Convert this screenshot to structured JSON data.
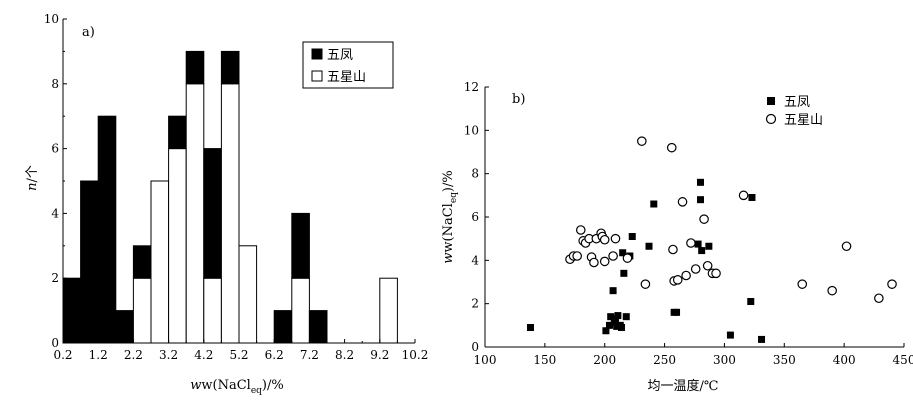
{
  "chart_data": [
    {
      "type": "bar",
      "panel": "a)",
      "ylabel_italic": "n",
      "ylabel_rest": "/个",
      "xlabel_main": "w(NaCl",
      "xlabel_sub": "eq",
      "xlabel_tail": ")/%",
      "ylim": [
        0,
        10
      ],
      "yticks": [
        "0",
        "2",
        "4",
        "6",
        "8",
        "10"
      ],
      "xticks": [
        "0.2",
        "1.2",
        "2.2",
        "3.2",
        "4.2",
        "5.2",
        "6.2",
        "7.2",
        "8.2",
        "9.2",
        "10.2"
      ],
      "bin_width": 0.5,
      "stacked": true,
      "legend_position": "top-right",
      "bins": [
        0.2,
        0.7,
        1.2,
        1.7,
        2.2,
        2.7,
        3.2,
        3.7,
        4.2,
        4.7,
        5.2,
        5.7,
        6.2,
        6.7,
        7.2,
        7.7,
        8.2,
        8.7,
        9.2,
        9.7
      ],
      "series": [
        {
          "name": "五星山",
          "fill": "#ffffff",
          "values": [
            0,
            0,
            0,
            0,
            2,
            5,
            6,
            8,
            2,
            8,
            3,
            0,
            0,
            2,
            0,
            0,
            0,
            0,
            2,
            0
          ]
        },
        {
          "name": "五凤",
          "fill": "#000000",
          "values": [
            2,
            5,
            7,
            1,
            1,
            0,
            1,
            1,
            4,
            1,
            0,
            0,
            1,
            2,
            1,
            0,
            0,
            0,
            0,
            0
          ]
        }
      ]
    },
    {
      "type": "scatter",
      "panel": "b)",
      "xlabel": "均一温度/℃",
      "ylabel_main": "w(NaCl",
      "ylabel_sub": "eq",
      "ylabel_tail": ")/%",
      "xlim": [
        100,
        450
      ],
      "ylim": [
        0,
        12
      ],
      "xticks": [
        "100",
        "150",
        "200",
        "250",
        "300",
        "350",
        "400",
        "450"
      ],
      "yticks": [
        "0",
        "2",
        "4",
        "6",
        "8",
        "10",
        "12"
      ],
      "legend_position": "top-right",
      "series": [
        {
          "name": "五凤",
          "marker": "filled-square",
          "points": [
            [
              138,
              0.9
            ],
            [
              201,
              0.75
            ],
            [
              204,
              1.0
            ],
            [
              205,
              1.4
            ],
            [
              207,
              2.6
            ],
            [
              208,
              1.3
            ],
            [
              209,
              1.15
            ],
            [
              210,
              0.95
            ],
            [
              211,
              1.45
            ],
            [
              213,
              1.0
            ],
            [
              214,
              0.9
            ],
            [
              215,
              4.35
            ],
            [
              216,
              3.4
            ],
            [
              218,
              1.4
            ],
            [
              221,
              4.2
            ],
            [
              223,
              5.1
            ],
            [
              237,
              4.65
            ],
            [
              241,
              6.6
            ],
            [
              258,
              1.6
            ],
            [
              260,
              1.6
            ],
            [
              278,
              4.75
            ],
            [
              280,
              7.6
            ],
            [
              280,
              6.8
            ],
            [
              281,
              4.45
            ],
            [
              287,
              4.65
            ],
            [
              305,
              0.55
            ],
            [
              322,
              2.1
            ],
            [
              323,
              6.9
            ],
            [
              331,
              0.35
            ]
          ]
        },
        {
          "name": "五星山",
          "marker": "open-circle",
          "points": [
            [
              171,
              4.05
            ],
            [
              174,
              4.2
            ],
            [
              177,
              4.2
            ],
            [
              180,
              5.4
            ],
            [
              182,
              4.9
            ],
            [
              184,
              4.8
            ],
            [
              187,
              5.0
            ],
            [
              189,
              4.15
            ],
            [
              191,
              3.9
            ],
            [
              193,
              5.0
            ],
            [
              197,
              5.25
            ],
            [
              198,
              5.1
            ],
            [
              200,
              4.95
            ],
            [
              200,
              3.95
            ],
            [
              207,
              4.2
            ],
            [
              209,
              5.0
            ],
            [
              219,
              4.1
            ],
            [
              231,
              9.5
            ],
            [
              234,
              2.9
            ],
            [
              256,
              9.2
            ],
            [
              257,
              4.5
            ],
            [
              258,
              3.05
            ],
            [
              261,
              3.1
            ],
            [
              265,
              6.7
            ],
            [
              268,
              3.3
            ],
            [
              272,
              4.8
            ],
            [
              276,
              3.6
            ],
            [
              283,
              5.9
            ],
            [
              286,
              3.75
            ],
            [
              290,
              3.4
            ],
            [
              293,
              3.4
            ],
            [
              316,
              7.0
            ],
            [
              365,
              2.9
            ],
            [
              390,
              2.6
            ],
            [
              402,
              4.65
            ],
            [
              429,
              2.25
            ],
            [
              440,
              2.9
            ]
          ]
        }
      ]
    }
  ]
}
